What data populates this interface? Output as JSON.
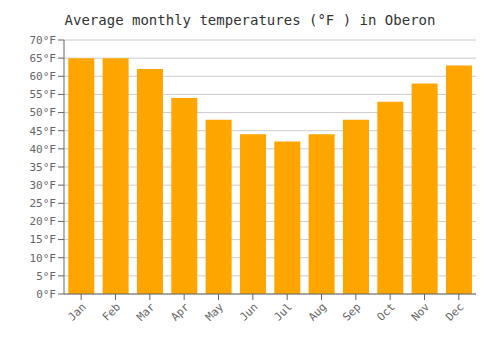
{
  "chart_data": {
    "type": "bar",
    "title": "Average monthly temperatures (°F ) in Oberon",
    "categories": [
      "Jan",
      "Feb",
      "Mar",
      "Apr",
      "May",
      "Jun",
      "Jul",
      "Aug",
      "Sep",
      "Oct",
      "Nov",
      "Dec"
    ],
    "values": [
      65,
      65,
      62,
      54,
      48,
      44,
      42,
      44,
      48,
      53,
      58,
      63
    ],
    "color": "#FFA500",
    "ylim": [
      0,
      70
    ],
    "yticks": [
      {
        "value": 0,
        "label": "0°F"
      },
      {
        "value": 5,
        "label": "5°F"
      },
      {
        "value": 10,
        "label": "10°F"
      },
      {
        "value": 15,
        "label": "15°F"
      },
      {
        "value": 20,
        "label": "20°F"
      },
      {
        "value": 25,
        "label": "25°F"
      },
      {
        "value": 30,
        "label": "30°F"
      },
      {
        "value": 35,
        "label": "35°F"
      },
      {
        "value": 40,
        "label": "40°F"
      },
      {
        "value": 45,
        "label": "45°F"
      },
      {
        "value": 50,
        "label": "50°F"
      },
      {
        "value": 55,
        "label": "55°F"
      },
      {
        "value": 60,
        "label": "60°F"
      },
      {
        "value": 65,
        "label": "65°F"
      },
      {
        "value": 70,
        "label": "70°F"
      }
    ],
    "grid": true
  }
}
